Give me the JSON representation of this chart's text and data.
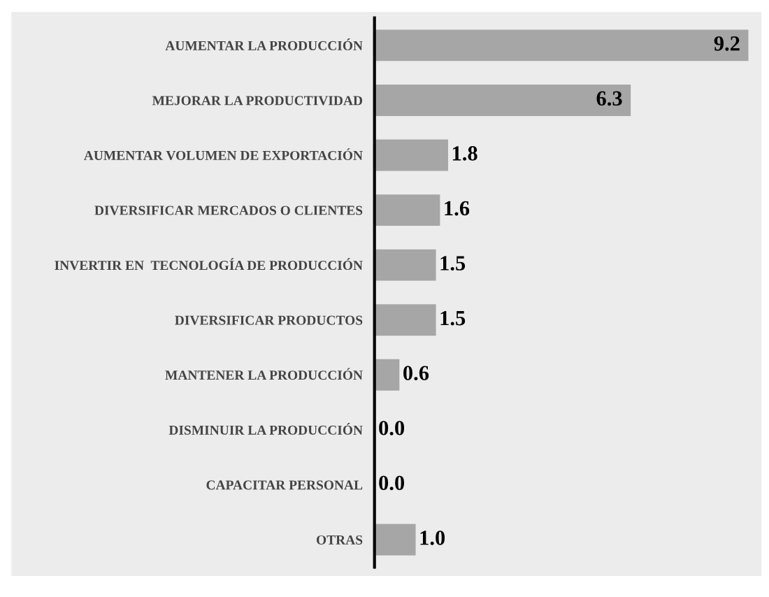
{
  "chart_data": {
    "type": "bar",
    "orientation": "horizontal",
    "categories": [
      "AUMENTAR LA PRODUCCIÓN",
      "MEJORAR LA PRODUCTIVIDAD",
      "AUMENTAR VOLUMEN DE EXPORTACIÓN",
      "DIVERSIFICAR MERCADOS O CLIENTES",
      "INVERTIR EN  TECNOLOGÍA DE PRODUCCIÓN",
      "DIVERSIFICAR PRODUCTOS",
      "MANTENER LA PRODUCCIÓN",
      "DISMINUIR LA PRODUCCIÓN",
      "CAPACITAR PERSONAL",
      "OTRAS"
    ],
    "values": [
      9.2,
      6.3,
      1.8,
      1.6,
      1.5,
      1.5,
      0.6,
      0.0,
      0.0,
      1.0
    ],
    "value_labels": [
      "9.2",
      "6.3",
      "1.8",
      "1.6",
      "1.5",
      "1.5",
      "0.6",
      "0.0",
      "0.0",
      "1.0"
    ],
    "color": "#a6a6a6",
    "grid": false,
    "legend": false
  }
}
